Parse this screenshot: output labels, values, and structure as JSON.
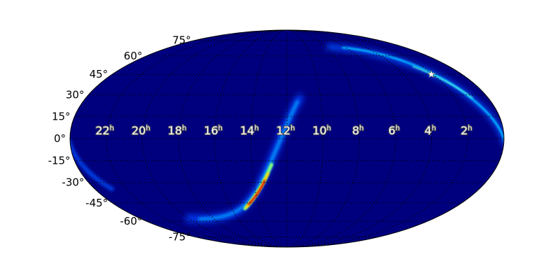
{
  "chart_data": {
    "type": "heatmap",
    "projection": "mollweide",
    "title": "",
    "colormap": "jet",
    "background_color": "#00007f",
    "grid": true,
    "ra_tick_labels": [
      "22",
      "20",
      "18",
      "16",
      "14",
      "12",
      "10",
      "8",
      "6",
      "4",
      "2"
    ],
    "ra_unit": "h",
    "ra_tick_values_hours": [
      22,
      20,
      18,
      16,
      14,
      12,
      10,
      8,
      6,
      4,
      2
    ],
    "dec_tick_labels": [
      "75°",
      "60°",
      "45°",
      "30°",
      "15°",
      "0°",
      "-15°",
      "-30°",
      "-45°",
      "-60°",
      "-75°"
    ],
    "dec_tick_values": [
      75,
      60,
      45,
      30,
      15,
      0,
      -15,
      -30,
      -45,
      -60,
      -75
    ],
    "marker": {
      "symbol": "star",
      "ra_hours": 2.1,
      "dec": 45,
      "color": "#ffffff"
    },
    "probability_bands": [
      {
        "description_ra_hours": [
          12.5,
          0
        ],
        "dec_range": [
          70,
          -20
        ],
        "peak_level": 0.45
      },
      {
        "description_ra_hours": [
          11.7,
          16.5
        ],
        "dec_range": [
          20,
          -57
        ],
        "peak_level": 1.0,
        "peak_ra_hours": 13.3,
        "peak_dec": -40
      }
    ]
  }
}
